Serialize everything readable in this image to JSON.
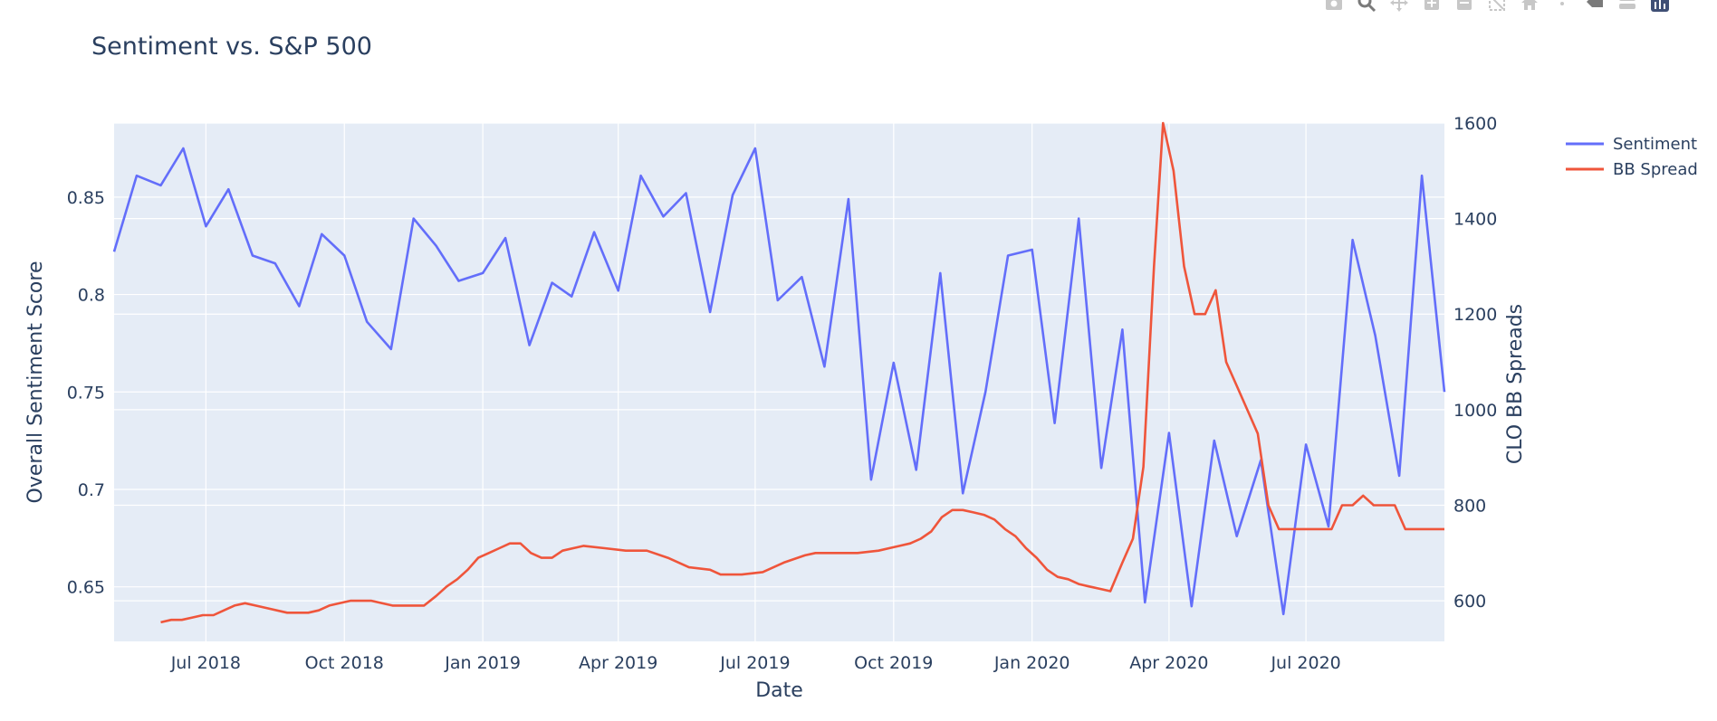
{
  "chart_data": {
    "type": "line",
    "title": "Sentiment vs. S&P 500",
    "xlabel": "Date",
    "ylabel": "Overall Sentiment Score",
    "y2label": "CLO BB Spreads",
    "xlim": [
      "2018-05-01",
      "2020-10-01"
    ],
    "ylim": [
      0.622,
      0.888
    ],
    "y2lim": [
      515,
      1600
    ],
    "x_ticks": [
      {
        "date": "2018-07-01",
        "label": "Jul 2018"
      },
      {
        "date": "2018-10-01",
        "label": "Oct 2018"
      },
      {
        "date": "2019-01-01",
        "label": "Jan 2019"
      },
      {
        "date": "2019-04-01",
        "label": "Apr 2019"
      },
      {
        "date": "2019-07-01",
        "label": "Jul 2019"
      },
      {
        "date": "2019-10-01",
        "label": "Oct 2019"
      },
      {
        "date": "2020-01-01",
        "label": "Jan 2020"
      },
      {
        "date": "2020-04-01",
        "label": "Apr 2020"
      },
      {
        "date": "2020-07-01",
        "label": "Jul 2020"
      }
    ],
    "y_ticks": [
      {
        "value": 0.65,
        "label": "0.65"
      },
      {
        "value": 0.7,
        "label": "0.7"
      },
      {
        "value": 0.75,
        "label": "0.75"
      },
      {
        "value": 0.8,
        "label": "0.8"
      },
      {
        "value": 0.85,
        "label": "0.85"
      }
    ],
    "y2_ticks": [
      {
        "value": 600,
        "label": "600"
      },
      {
        "value": 800,
        "label": "800"
      },
      {
        "value": 1000,
        "label": "1000"
      },
      {
        "value": 1200,
        "label": "1200"
      },
      {
        "value": 1400,
        "label": "1400"
      },
      {
        "value": 1600,
        "label": "1600"
      }
    ],
    "grid": true,
    "legend_position": "top-right outside",
    "series": [
      {
        "name": "Sentiment",
        "color": "#636efa",
        "axis": "y",
        "points": [
          [
            "2018-05-01",
            0.822
          ],
          [
            "2018-05-16",
            0.861
          ],
          [
            "2018-06-01",
            0.856
          ],
          [
            "2018-06-16",
            0.875
          ],
          [
            "2018-07-01",
            0.835
          ],
          [
            "2018-07-16",
            0.854
          ],
          [
            "2018-08-01",
            0.82
          ],
          [
            "2018-08-16",
            0.816
          ],
          [
            "2018-09-01",
            0.794
          ],
          [
            "2018-09-16",
            0.831
          ],
          [
            "2018-10-01",
            0.82
          ],
          [
            "2018-10-16",
            0.786
          ],
          [
            "2018-11-01",
            0.772
          ],
          [
            "2018-11-16",
            0.839
          ],
          [
            "2018-12-01",
            0.825
          ],
          [
            "2018-12-16",
            0.807
          ],
          [
            "2019-01-01",
            0.811
          ],
          [
            "2019-01-16",
            0.829
          ],
          [
            "2019-02-01",
            0.774
          ],
          [
            "2019-02-16",
            0.806
          ],
          [
            "2019-03-01",
            0.799
          ],
          [
            "2019-03-16",
            0.832
          ],
          [
            "2019-04-01",
            0.802
          ],
          [
            "2019-04-16",
            0.861
          ],
          [
            "2019-05-01",
            0.84
          ],
          [
            "2019-05-16",
            0.852
          ],
          [
            "2019-06-01",
            0.791
          ],
          [
            "2019-06-16",
            0.851
          ],
          [
            "2019-07-01",
            0.875
          ],
          [
            "2019-07-16",
            0.797
          ],
          [
            "2019-08-01",
            0.809
          ],
          [
            "2019-08-16",
            0.763
          ],
          [
            "2019-09-01",
            0.849
          ],
          [
            "2019-09-16",
            0.705
          ],
          [
            "2019-10-01",
            0.765
          ],
          [
            "2019-10-16",
            0.71
          ],
          [
            "2019-11-01",
            0.811
          ],
          [
            "2019-11-16",
            0.698
          ],
          [
            "2019-12-01",
            0.75
          ],
          [
            "2019-12-16",
            0.82
          ],
          [
            "2020-01-01",
            0.823
          ],
          [
            "2020-01-16",
            0.734
          ],
          [
            "2020-02-01",
            0.839
          ],
          [
            "2020-02-16",
            0.711
          ],
          [
            "2020-03-01",
            0.782
          ],
          [
            "2020-03-16",
            0.642
          ],
          [
            "2020-04-01",
            0.729
          ],
          [
            "2020-04-16",
            0.64
          ],
          [
            "2020-05-01",
            0.725
          ],
          [
            "2020-05-16",
            0.676
          ],
          [
            "2020-06-01",
            0.715
          ],
          [
            "2020-06-16",
            0.636
          ],
          [
            "2020-07-01",
            0.723
          ],
          [
            "2020-07-16",
            0.681
          ],
          [
            "2020-08-01",
            0.828
          ],
          [
            "2020-08-16",
            0.779
          ],
          [
            "2020-09-01",
            0.707
          ],
          [
            "2020-09-16",
            0.861
          ],
          [
            "2020-10-01",
            0.75
          ]
        ]
      },
      {
        "name": "BB Spread",
        "color": "#ef553b",
        "axis": "y2",
        "points": [
          [
            "2018-06-01",
            555
          ],
          [
            "2018-06-08",
            560
          ],
          [
            "2018-06-15",
            560
          ],
          [
            "2018-06-22",
            565
          ],
          [
            "2018-06-29",
            570
          ],
          [
            "2018-07-06",
            570
          ],
          [
            "2018-07-13",
            580
          ],
          [
            "2018-07-20",
            590
          ],
          [
            "2018-07-27",
            595
          ],
          [
            "2018-08-03",
            590
          ],
          [
            "2018-08-10",
            585
          ],
          [
            "2018-08-24",
            575
          ],
          [
            "2018-09-07",
            575
          ],
          [
            "2018-09-14",
            580
          ],
          [
            "2018-09-21",
            590
          ],
          [
            "2018-10-05",
            600
          ],
          [
            "2018-10-12",
            600
          ],
          [
            "2018-10-19",
            600
          ],
          [
            "2018-11-02",
            590
          ],
          [
            "2018-11-23",
            590
          ],
          [
            "2018-12-01",
            610
          ],
          [
            "2018-12-08",
            630
          ],
          [
            "2018-12-15",
            645
          ],
          [
            "2018-12-22",
            665
          ],
          [
            "2018-12-29",
            690
          ],
          [
            "2019-01-05",
            700
          ],
          [
            "2019-01-12",
            710
          ],
          [
            "2019-01-19",
            720
          ],
          [
            "2019-01-26",
            720
          ],
          [
            "2019-02-02",
            700
          ],
          [
            "2019-02-09",
            690
          ],
          [
            "2019-02-16",
            690
          ],
          [
            "2019-02-23",
            705
          ],
          [
            "2019-03-09",
            715
          ],
          [
            "2019-03-23",
            710
          ],
          [
            "2019-04-06",
            705
          ],
          [
            "2019-04-20",
            705
          ],
          [
            "2019-05-04",
            690
          ],
          [
            "2019-05-18",
            670
          ],
          [
            "2019-06-01",
            665
          ],
          [
            "2019-06-08",
            655
          ],
          [
            "2019-06-22",
            655
          ],
          [
            "2019-07-06",
            660
          ],
          [
            "2019-07-20",
            680
          ],
          [
            "2019-08-03",
            695
          ],
          [
            "2019-08-10",
            700
          ],
          [
            "2019-08-24",
            700
          ],
          [
            "2019-09-07",
            700
          ],
          [
            "2019-09-21",
            705
          ],
          [
            "2019-09-28",
            710
          ],
          [
            "2019-10-05",
            715
          ],
          [
            "2019-10-12",
            720
          ],
          [
            "2019-10-19",
            730
          ],
          [
            "2019-10-26",
            745
          ],
          [
            "2019-11-02",
            775
          ],
          [
            "2019-11-09",
            790
          ],
          [
            "2019-11-16",
            790
          ],
          [
            "2019-11-23",
            785
          ],
          [
            "2019-11-30",
            780
          ],
          [
            "2019-12-07",
            770
          ],
          [
            "2019-12-14",
            750
          ],
          [
            "2019-12-21",
            735
          ],
          [
            "2019-12-28",
            710
          ],
          [
            "2020-01-04",
            690
          ],
          [
            "2020-01-11",
            665
          ],
          [
            "2020-01-18",
            650
          ],
          [
            "2020-01-25",
            645
          ],
          [
            "2020-02-01",
            635
          ],
          [
            "2020-02-08",
            630
          ],
          [
            "2020-02-15",
            625
          ],
          [
            "2020-02-22",
            620
          ],
          [
            "2020-03-01",
            680
          ],
          [
            "2020-03-08",
            730
          ],
          [
            "2020-03-15",
            880
          ],
          [
            "2020-03-22",
            1300
          ],
          [
            "2020-03-28",
            1600
          ],
          [
            "2020-04-04",
            1500
          ],
          [
            "2020-04-11",
            1300
          ],
          [
            "2020-04-18",
            1200
          ],
          [
            "2020-04-25",
            1200
          ],
          [
            "2020-05-02",
            1250
          ],
          [
            "2020-05-09",
            1100
          ],
          [
            "2020-05-16",
            1050
          ],
          [
            "2020-05-23",
            1000
          ],
          [
            "2020-05-30",
            950
          ],
          [
            "2020-06-06",
            800
          ],
          [
            "2020-06-13",
            750
          ],
          [
            "2020-06-20",
            750
          ],
          [
            "2020-06-27",
            750
          ],
          [
            "2020-07-04",
            750
          ],
          [
            "2020-07-11",
            750
          ],
          [
            "2020-07-18",
            750
          ],
          [
            "2020-07-25",
            800
          ],
          [
            "2020-08-01",
            800
          ],
          [
            "2020-08-08",
            820
          ],
          [
            "2020-08-15",
            800
          ],
          [
            "2020-08-22",
            800
          ],
          [
            "2020-08-29",
            800
          ],
          [
            "2020-09-05",
            750
          ],
          [
            "2020-09-12",
            750
          ],
          [
            "2020-09-19",
            750
          ],
          [
            "2020-10-01",
            750
          ]
        ]
      }
    ]
  },
  "modebar": {
    "buttons": [
      {
        "icon": "camera-icon"
      },
      {
        "icon": "zoom-icon"
      },
      {
        "icon": "pan-icon"
      },
      {
        "icon": "zoom-in-icon"
      },
      {
        "icon": "zoom-out-icon"
      },
      {
        "icon": "autoscale-icon"
      },
      {
        "icon": "reset-axes-icon"
      },
      {
        "icon": "spike-lines-icon"
      },
      {
        "icon": "hover-closest-icon"
      },
      {
        "icon": "hover-compare-icon"
      },
      {
        "icon": "plotly-logo-icon"
      }
    ]
  }
}
